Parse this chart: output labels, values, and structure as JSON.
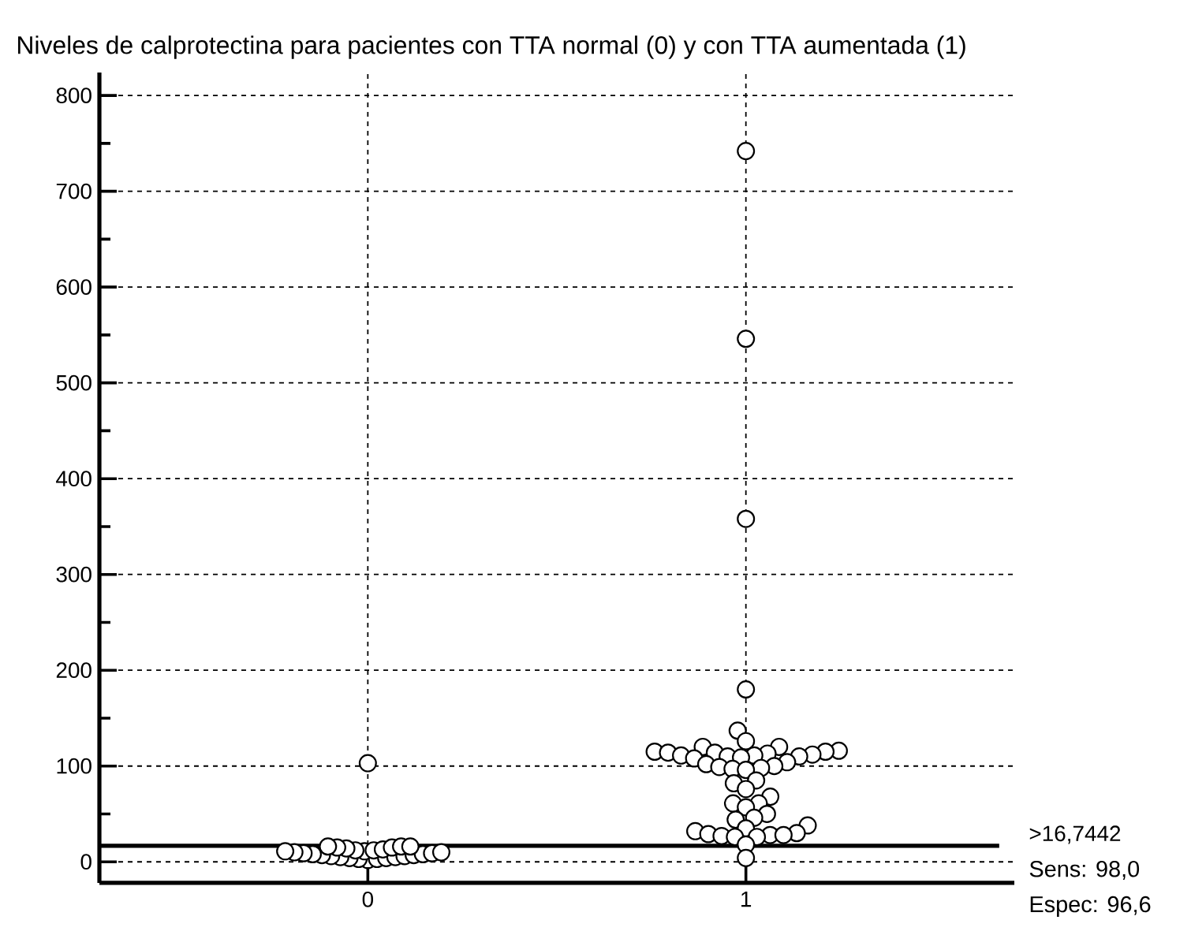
{
  "chart_data": {
    "type": "scatter",
    "title": "Niveles de calprotectina para pacientes con TTA normal (0) y con TTA aumentada (1)",
    "categories": [
      "0",
      "1"
    ],
    "series": [
      {
        "color": "#000000",
        "x": [
          "0",
          "0",
          "0",
          "0",
          "0",
          "0",
          "0",
          "0",
          "0",
          "0",
          "0",
          "0",
          "0",
          "0",
          "0",
          "0",
          "0",
          "0",
          "0",
          "0",
          "0",
          "0",
          "0",
          "0",
          "0",
          "0",
          "0",
          "0",
          "0",
          "1",
          "1",
          "1",
          "1",
          "1",
          "1",
          "1",
          "1",
          "1",
          "1",
          "1",
          "1",
          "1",
          "1",
          "1",
          "1",
          "1",
          "1",
          "1",
          "1",
          "1",
          "1",
          "1",
          "1",
          "1",
          "1",
          "1",
          "1",
          "1",
          "1",
          "1",
          "1",
          "1",
          "1",
          "1",
          "1",
          "1",
          "1",
          "1",
          "1",
          "1",
          "1",
          "1",
          "1",
          "1",
          "1",
          "1",
          "1",
          "1",
          "1"
        ],
        "values": [
          103,
          2,
          3,
          3,
          4,
          4,
          5,
          5,
          6,
          6,
          7,
          7,
          8,
          8,
          9,
          9,
          10,
          10,
          11,
          11,
          12,
          12,
          13,
          14,
          15,
          15,
          16,
          16,
          16,
          742,
          546,
          358,
          180,
          137,
          126,
          120,
          120,
          116,
          115,
          115,
          114,
          114,
          113,
          112,
          111,
          111,
          110,
          110,
          109,
          108,
          104,
          102,
          100,
          99,
          98,
          97,
          96,
          85,
          82,
          76,
          68,
          61,
          61,
          57,
          50,
          46,
          44,
          38,
          35,
          32,
          30,
          29,
          28,
          28,
          27,
          26,
          26,
          18,
          4
        ]
      }
    ],
    "ylim": [
      -22,
      824
    ],
    "yticks": [
      0,
      {
        "value": 50,
        "label": null
      },
      100,
      {
        "value": 150,
        "label": null
      },
      200,
      {
        "value": 250,
        "label": null
      },
      300,
      {
        "value": 350,
        "label": null
      },
      400,
      {
        "value": 450,
        "label": null
      },
      500,
      {
        "value": 550,
        "label": null
      },
      600,
      {
        "value": 650,
        "label": null
      },
      700,
      {
        "value": 750,
        "label": null
      },
      800
    ],
    "grid": true,
    "marker": "circle",
    "ref_lines": [
      {
        "axis": "y",
        "value": 16.7442,
        "label": ">16,7442"
      }
    ],
    "annotations": [
      "Sens: 98,0",
      "Espec: 96,6"
    ]
  }
}
